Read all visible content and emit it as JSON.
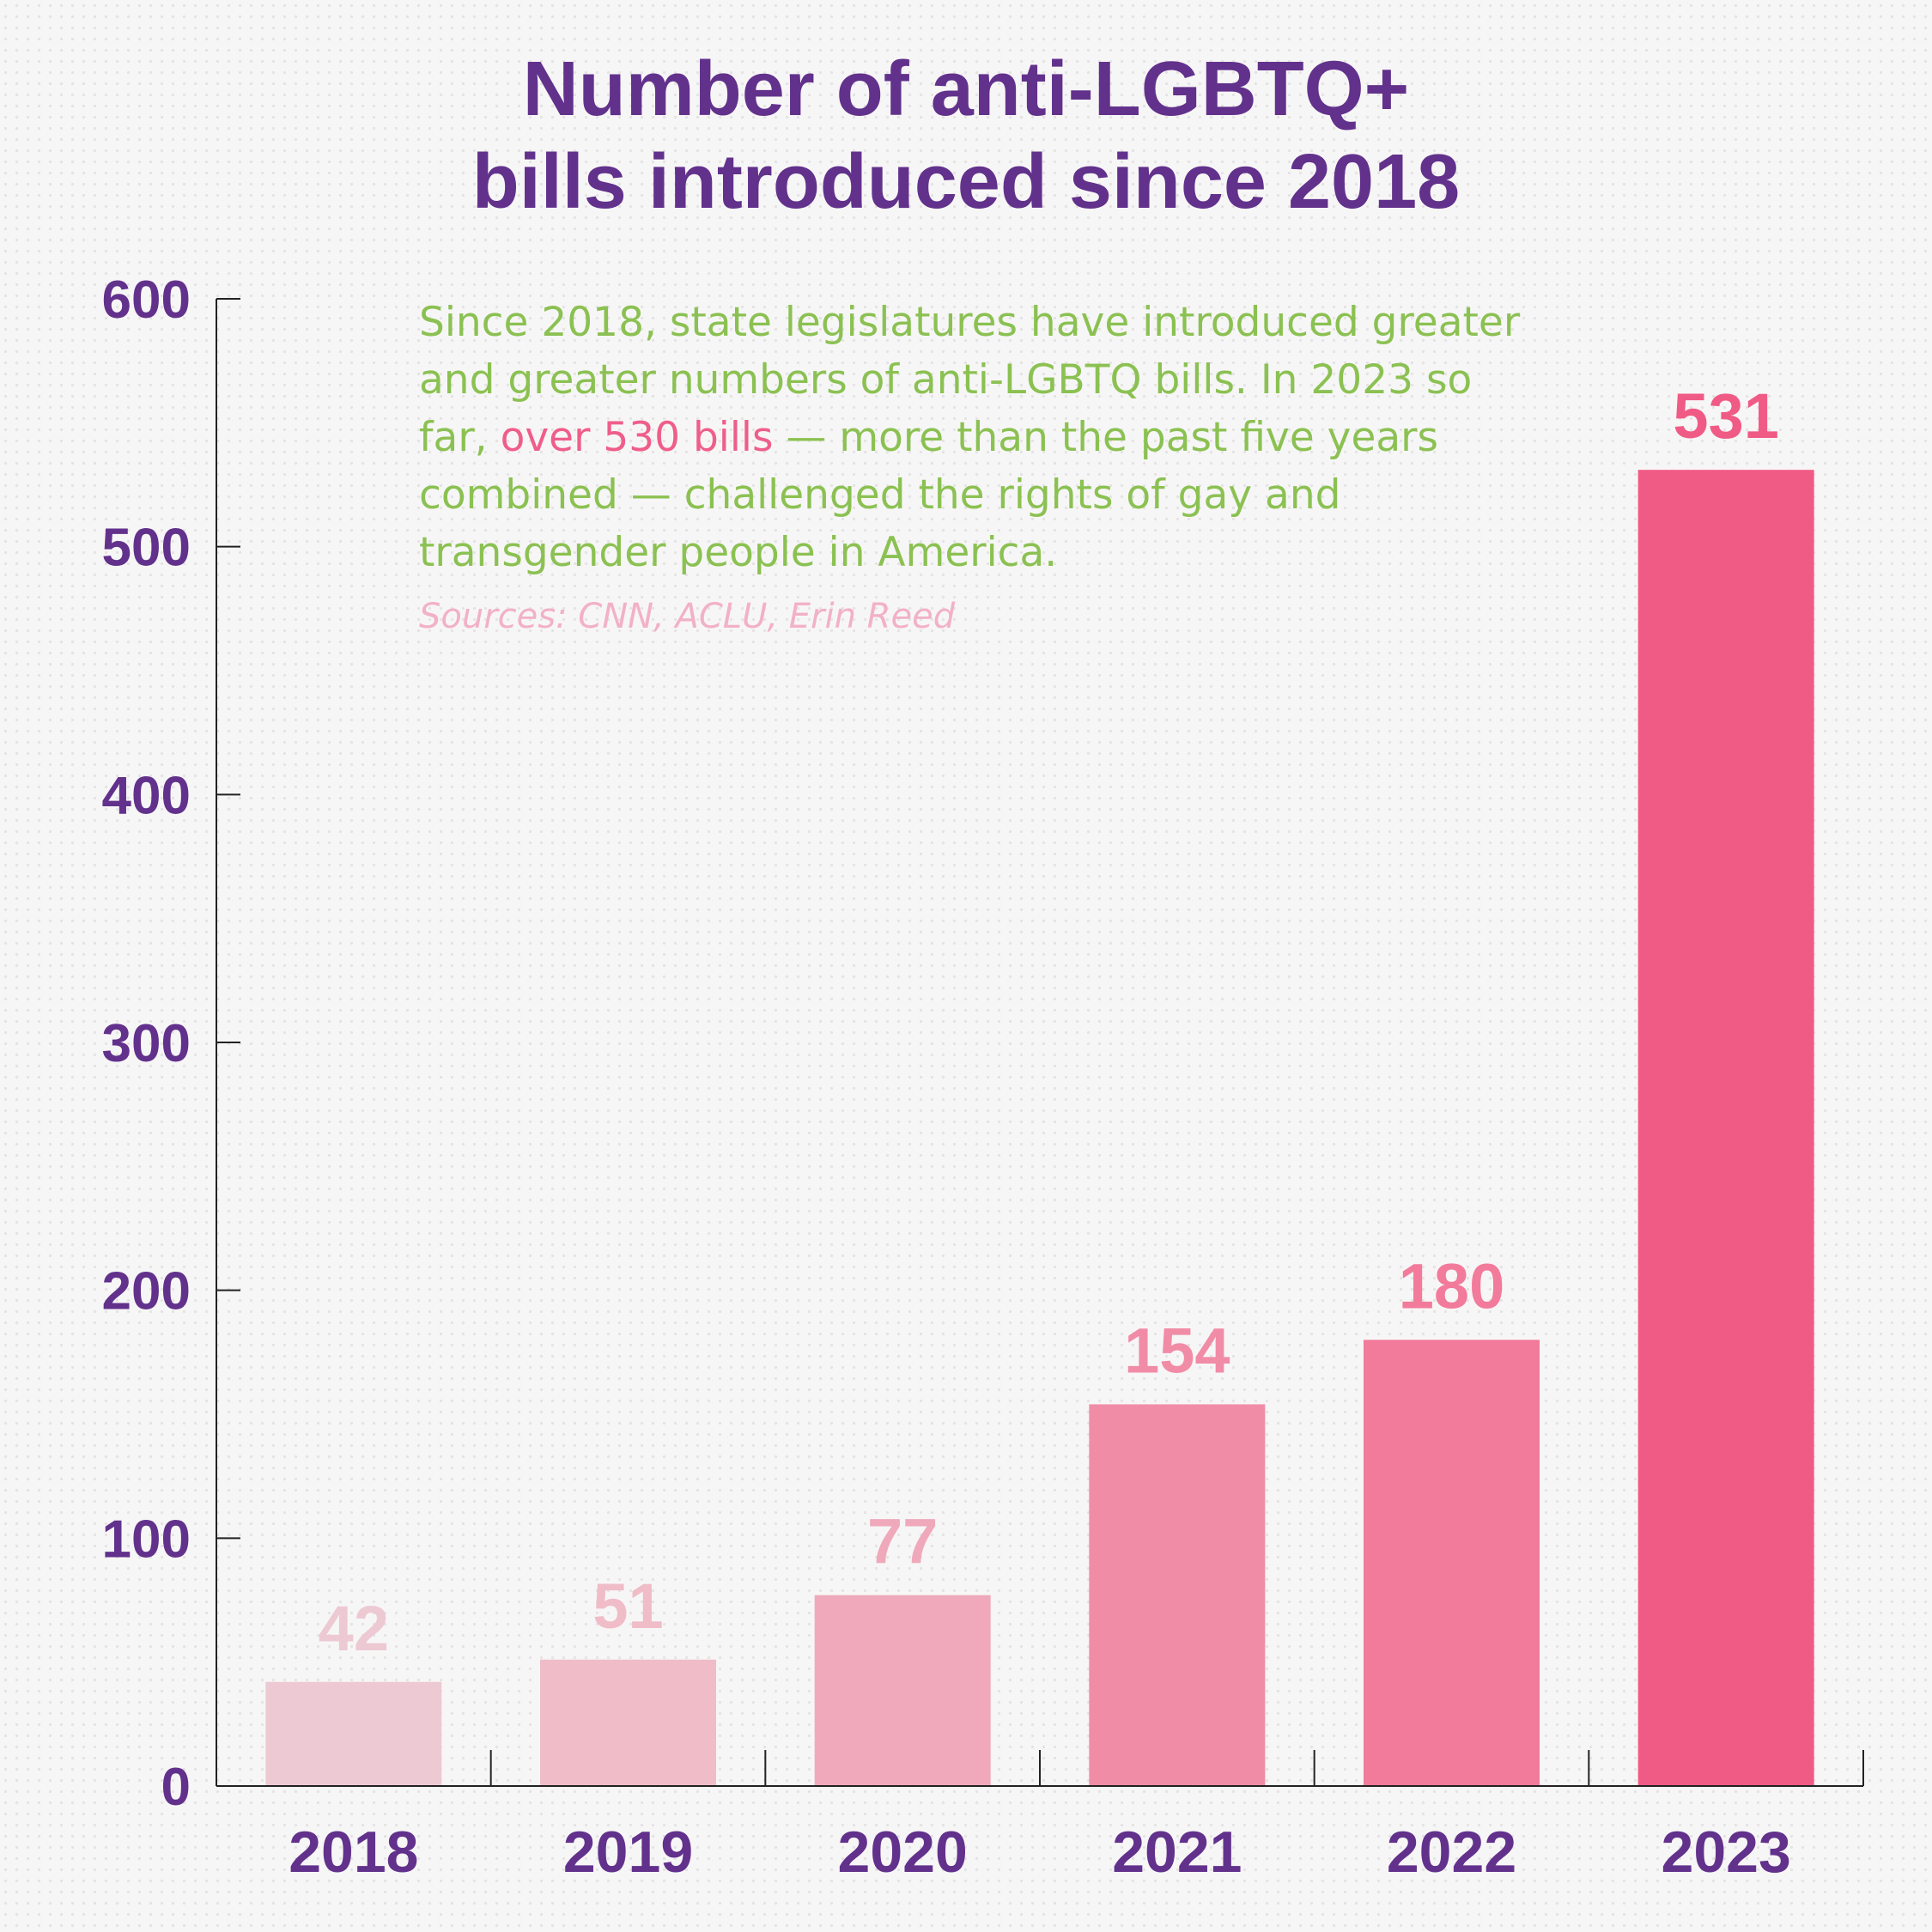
{
  "title": {
    "line1": "Number of anti-LGBTQ+",
    "line2": "bills introduced since 2018"
  },
  "annotation": {
    "part1": "Since 2018, state legislatures have introduced greater and greater numbers of anti-LGBTQ bills. In 2023 so far,",
    "highlight": "over 530 bills",
    "part2": "— more than the past five years combined — challenged the rights of gay and transgender people in America.",
    "source": "Sources: CNN, ACLU, Erin Reed"
  },
  "colors": {
    "title": "#62318c",
    "annotation": "#8bc152",
    "highlight": "#ef5e8b",
    "source": "#f2b1c6",
    "axis": "#222222"
  },
  "chart_data": {
    "type": "bar",
    "categories": [
      "2018",
      "2019",
      "2020",
      "2021",
      "2022",
      "2023"
    ],
    "values": [
      42,
      51,
      77,
      154,
      180,
      531
    ],
    "bar_colors": [
      "#edc9d3",
      "#efbcc8",
      "#efa9bb",
      "#f18ca7",
      "#f27a9a",
      "#f05b86"
    ],
    "ylim": [
      0,
      600
    ],
    "yticks": [
      0,
      100,
      200,
      300,
      400,
      500,
      600
    ],
    "title": "Number of anti-LGBTQ+ bills introduced since 2018",
    "xlabel": "",
    "ylabel": "",
    "grid": false,
    "data_labels": true
  }
}
